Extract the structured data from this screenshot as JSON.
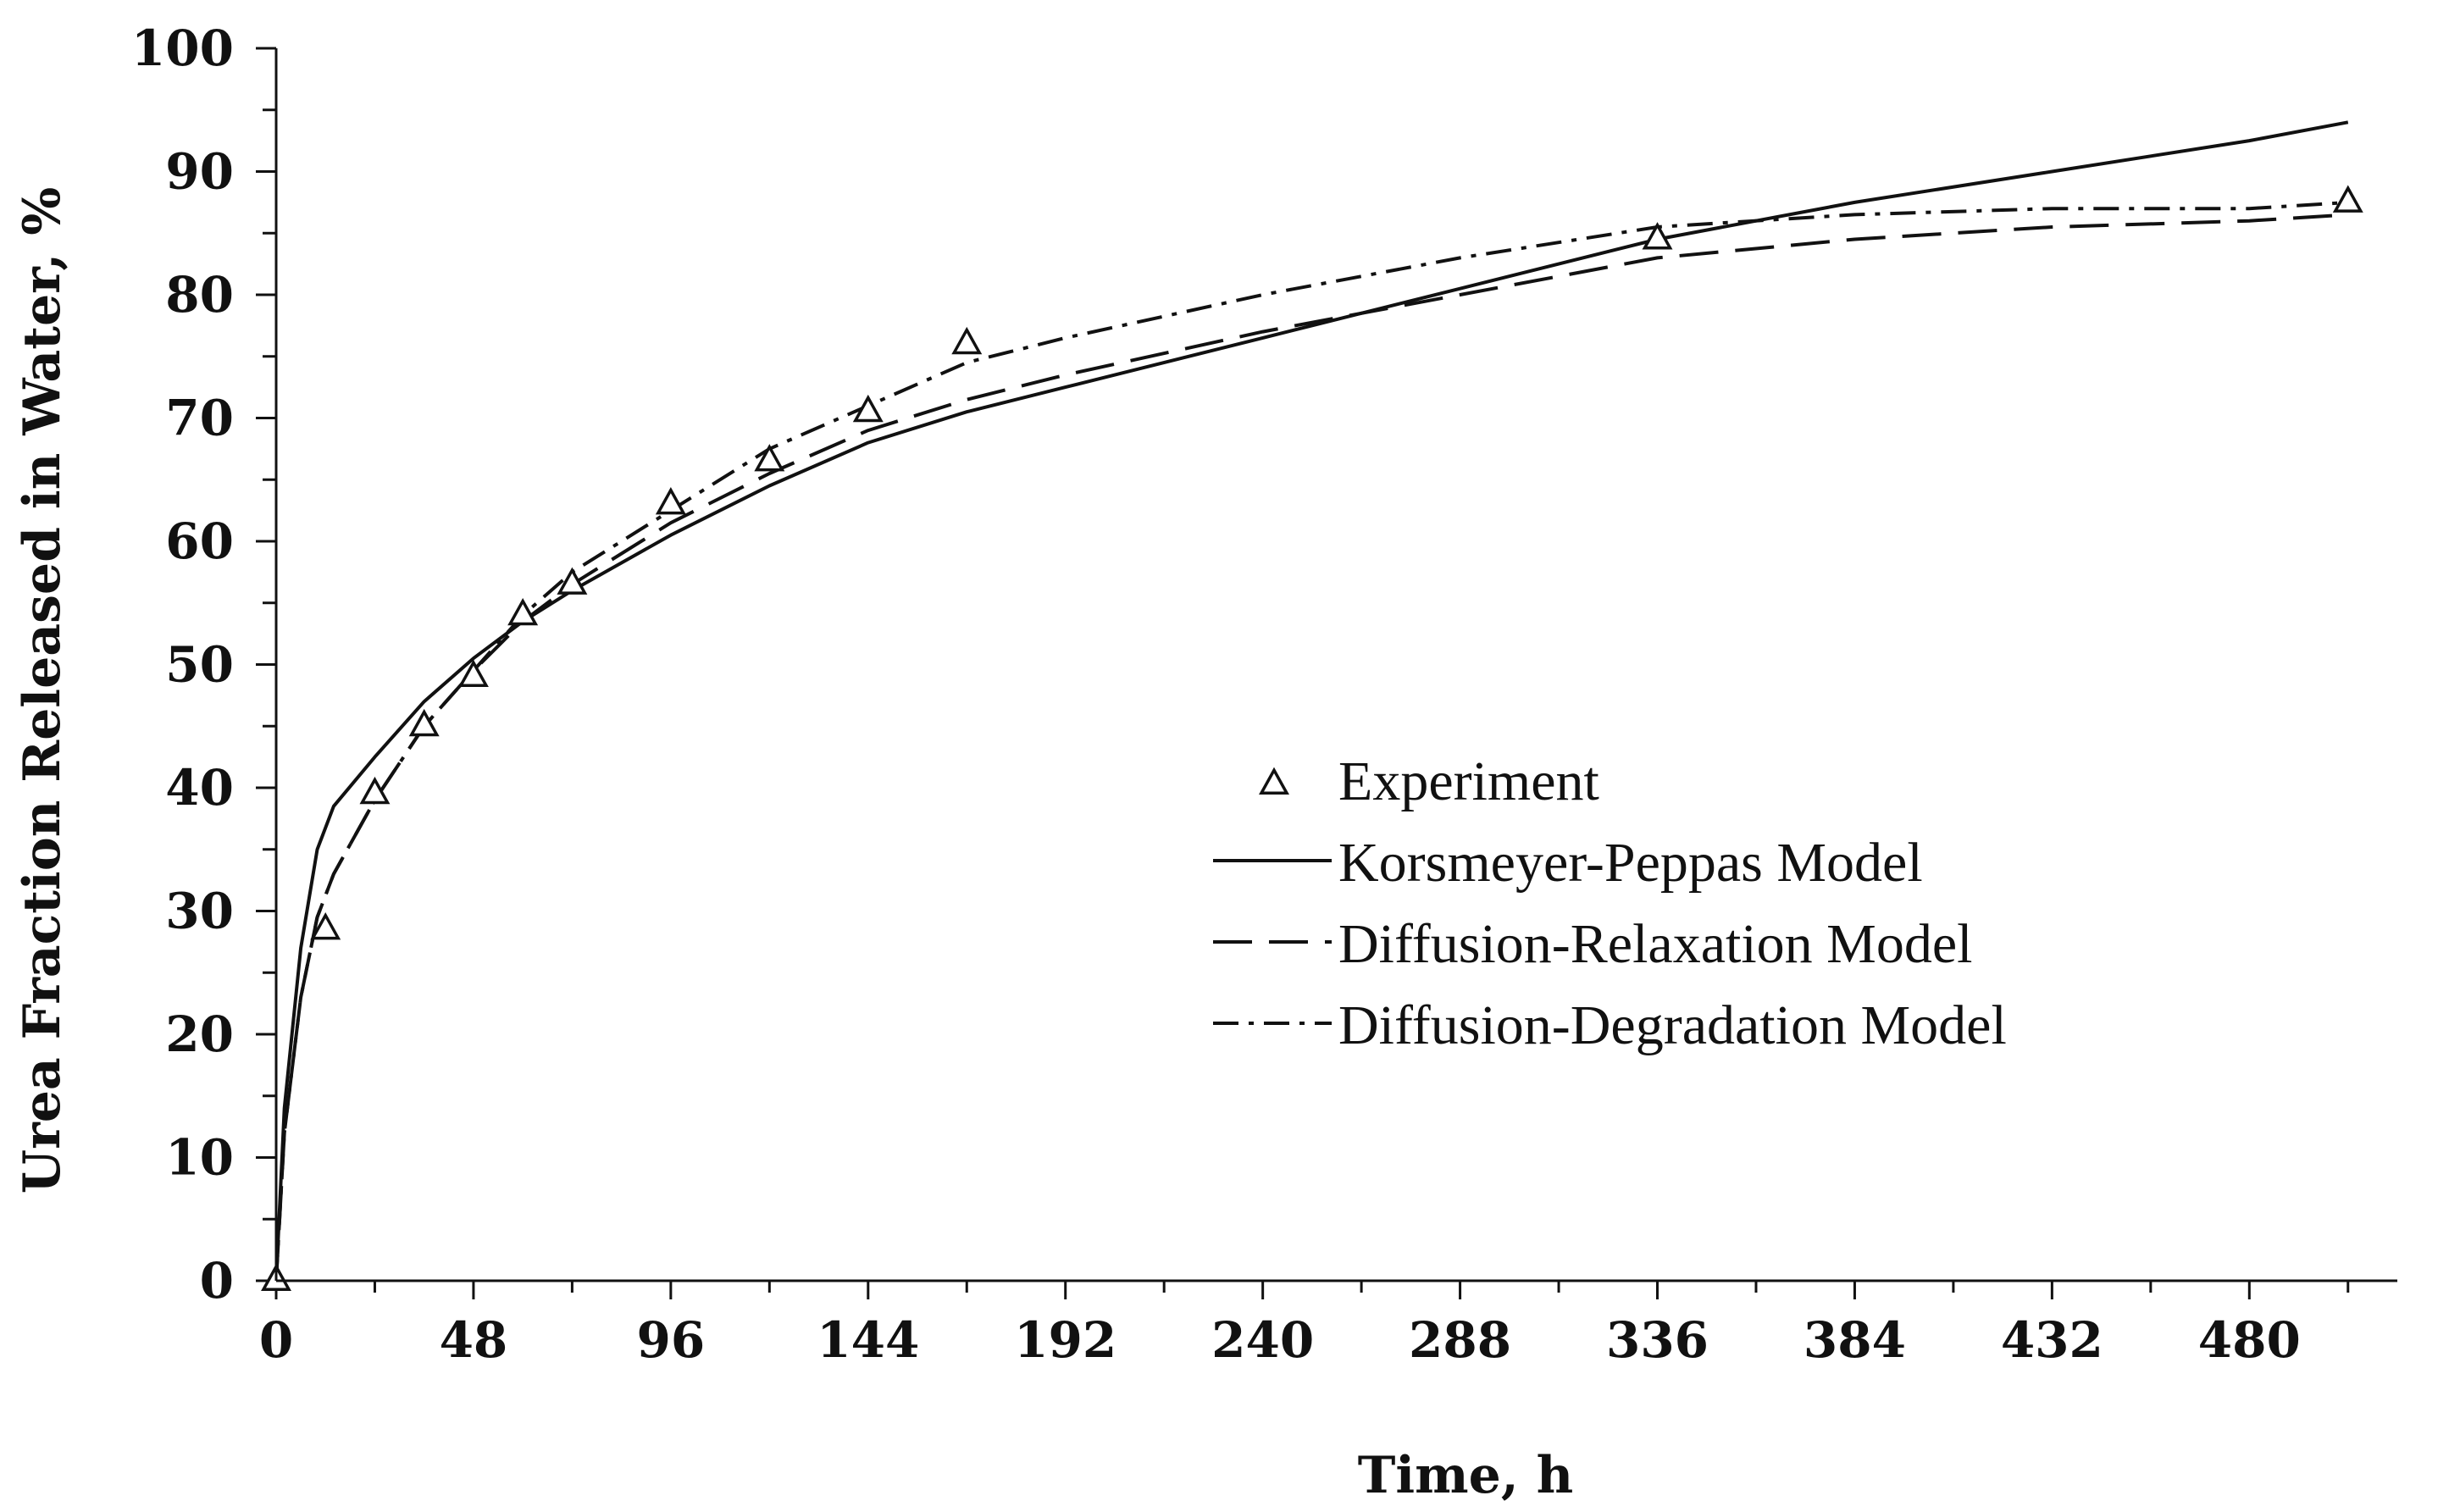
{
  "chart_data": {
    "type": "line",
    "title": "",
    "xlabel": "Time, h",
    "ylabel": "Urea Fraction Released in Water,  %",
    "xlim": [
      0,
      516
    ],
    "ylim": [
      0,
      100
    ],
    "x_ticks": [
      0,
      48,
      96,
      144,
      192,
      240,
      288,
      336,
      384,
      432,
      480
    ],
    "x_minor_step": 24,
    "y_ticks": [
      0,
      10,
      20,
      30,
      40,
      50,
      60,
      70,
      80,
      90,
      100
    ],
    "y_minor_step": 5,
    "grid": false,
    "legend_position": "center-right",
    "series": [
      {
        "name": "Experiment",
        "style": "markers",
        "marker": "triangle-open",
        "x": [
          0,
          12,
          24,
          36,
          48,
          60,
          72,
          96,
          120,
          144,
          168,
          336,
          504
        ],
        "y": [
          0,
          28.5,
          39.5,
          45,
          49,
          54,
          56.5,
          63,
          66.5,
          70.5,
          76,
          84.5,
          87.5
        ]
      },
      {
        "name": "Korsmeyer-Peppas Model",
        "style": "solid",
        "x": [
          0,
          2,
          6,
          10,
          14,
          24,
          36,
          48,
          60,
          72,
          96,
          120,
          144,
          168,
          192,
          240,
          288,
          336,
          384,
          432,
          480,
          504
        ],
        "y": [
          0,
          14,
          27,
          35,
          38.5,
          42.5,
          47,
          50.5,
          53.5,
          56,
          60.5,
          64.5,
          68,
          70.5,
          72.5,
          76.5,
          80.5,
          84.5,
          87.5,
          90,
          92.5,
          94
        ]
      },
      {
        "name": "Diffusion-Relaxation Model",
        "style": "dashed",
        "x": [
          0,
          2,
          6,
          10,
          14,
          24,
          36,
          48,
          60,
          72,
          96,
          120,
          144,
          168,
          192,
          240,
          288,
          336,
          384,
          432,
          480,
          504
        ],
        "y": [
          0,
          12,
          23,
          29.5,
          33,
          39,
          45,
          49.5,
          53.5,
          56.5,
          61.5,
          65.5,
          69,
          71.5,
          73.5,
          77,
          80,
          83,
          84.5,
          85.5,
          86,
          86.5
        ]
      },
      {
        "name": "Diffusion-Degradation Model",
        "style": "dash-dot",
        "x": [
          0,
          2,
          6,
          10,
          14,
          24,
          36,
          48,
          60,
          72,
          96,
          120,
          144,
          168,
          192,
          240,
          288,
          336,
          384,
          432,
          480,
          504
        ],
        "y": [
          0,
          12,
          23,
          29.5,
          33,
          39,
          45,
          49.5,
          54,
          57.5,
          62.5,
          67.5,
          71,
          74.5,
          76.5,
          80,
          83,
          85.5,
          86.5,
          87,
          87,
          87.5
        ]
      }
    ]
  }
}
